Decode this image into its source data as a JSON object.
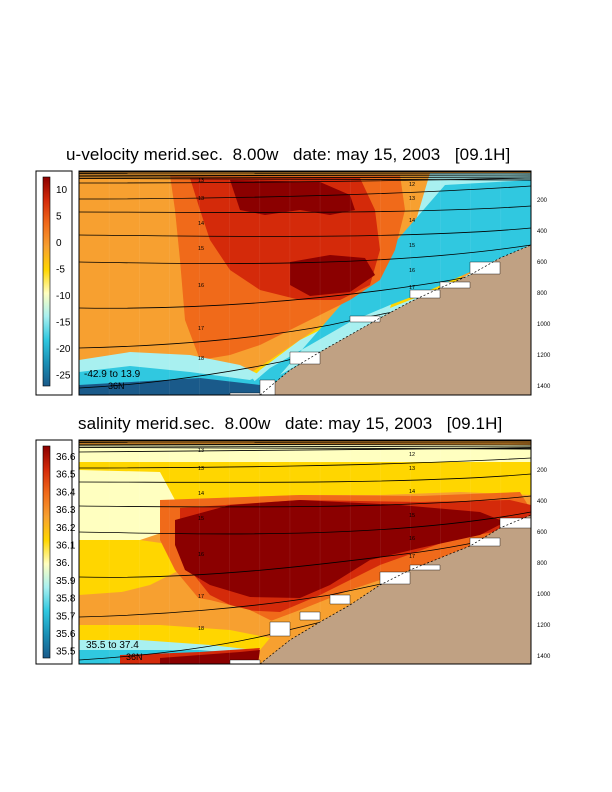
{
  "chart_data": [
    {
      "type": "heatmap",
      "title": "u-velocity merid.sec.  8.00w   date: may 15, 2003   [09.1H]",
      "colorbar": {
        "ticks": [
          "10",
          "5",
          "0",
          "-5",
          "-10",
          "-15",
          "-20",
          "-25"
        ],
        "range": [
          -27,
          12
        ],
        "colors": [
          "#8b0000",
          "#d42a0a",
          "#f06a1a",
          "#f7a030",
          "#ffd600",
          "#ffffc0",
          "#a8f0f0",
          "#30c8e0",
          "#1a8fb5",
          "#1a5a8a"
        ]
      },
      "range_note": "-42.9 to  13.9",
      "latitude_label": "36N",
      "depth_ticks": [
        "200",
        "400",
        "600",
        "800",
        "1000",
        "1200",
        "1400"
      ],
      "isopycnal_labels": [
        "12",
        "13",
        "14",
        "15",
        "16",
        "17",
        "18"
      ],
      "contour_labels_left": [
        "13",
        "13",
        "14",
        "15",
        "16",
        "17",
        "18"
      ],
      "contour_labels_right": [
        "12",
        "13",
        "14",
        "15",
        "16",
        "17"
      ]
    },
    {
      "type": "heatmap",
      "title": "salinity merid.sec.  8.00w   date: may 15, 2003   [09.1H]",
      "colorbar": {
        "ticks": [
          "36.6",
          "36.5",
          "36.4",
          "36.3",
          "36.2",
          "36.1",
          "36.",
          "35.9",
          "35.8",
          "35.7",
          "35.6",
          "35.5"
        ],
        "range": [
          35.45,
          36.7
        ],
        "colors": [
          "#8b0000",
          "#d42a0a",
          "#f06a1a",
          "#f7a030",
          "#ffd600",
          "#ffffc0",
          "#a8f0f0",
          "#30c8e0",
          "#1a8fb5",
          "#1a5a8a"
        ]
      },
      "range_note": "35.5 to  37.4",
      "latitude_label": "36N",
      "depth_ticks": [
        "200",
        "400",
        "600",
        "800",
        "1000",
        "1200",
        "1400"
      ],
      "contour_labels_left": [
        "13",
        "13",
        "14",
        "15",
        "16",
        "17",
        "18"
      ],
      "contour_labels_right": [
        "12",
        "13",
        "14",
        "15",
        "16",
        "17"
      ]
    }
  ],
  "colors": {
    "land": "#c0a183",
    "contour": "#000000"
  }
}
